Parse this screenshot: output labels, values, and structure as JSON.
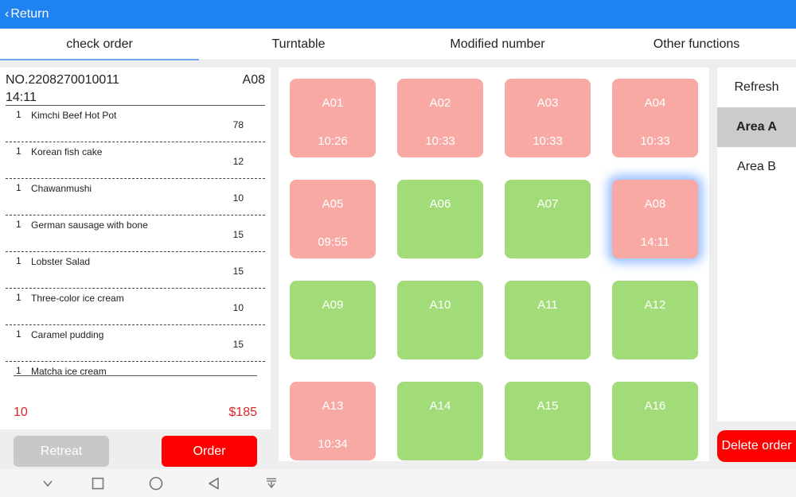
{
  "topbar": {
    "back_label": "Return"
  },
  "tabs": [
    {
      "label": "check order"
    },
    {
      "label": "Turntable"
    },
    {
      "label": "Modified number"
    },
    {
      "label": "Other functions"
    }
  ],
  "order": {
    "number": "NO.2208270010011",
    "table": "A08",
    "time": "14:11",
    "items": [
      {
        "qty": "1",
        "name": "Kimchi Beef Hot Pot",
        "price": "78"
      },
      {
        "qty": "1",
        "name": "Korean fish cake",
        "price": "12"
      },
      {
        "qty": "1",
        "name": "Chawanmushi",
        "price": "10"
      },
      {
        "qty": "1",
        "name": "German sausage with bone",
        "price": "15"
      },
      {
        "qty": "1",
        "name": "Lobster Salad",
        "price": "15"
      },
      {
        "qty": "1",
        "name": "Three-color ice cream",
        "price": "10"
      },
      {
        "qty": "1",
        "name": "Caramel pudding",
        "price": "15"
      },
      {
        "qty": "1",
        "name": "Matcha ice cream",
        "price": ""
      }
    ],
    "total_count": "10",
    "total_amount": "$185"
  },
  "buttons": {
    "retreat": "Retreat",
    "order": "Order",
    "delete_order": "Delete order"
  },
  "tables": [
    {
      "name": "A01",
      "time": "10:26",
      "status": "occupied"
    },
    {
      "name": "A02",
      "time": "10:33",
      "status": "occupied"
    },
    {
      "name": "A03",
      "time": "10:33",
      "status": "occupied"
    },
    {
      "name": "A04",
      "time": "10:33",
      "status": "occupied"
    },
    {
      "name": "A05",
      "time": "09:55",
      "status": "occupied"
    },
    {
      "name": "A06",
      "time": "",
      "status": "free"
    },
    {
      "name": "A07",
      "time": "",
      "status": "free"
    },
    {
      "name": "A08",
      "time": "14:11",
      "status": "occupied",
      "selected": true
    },
    {
      "name": "A09",
      "time": "",
      "status": "free"
    },
    {
      "name": "A10",
      "time": "",
      "status": "free"
    },
    {
      "name": "A11",
      "time": "",
      "status": "free"
    },
    {
      "name": "A12",
      "time": "",
      "status": "free"
    },
    {
      "name": "A13",
      "time": "10:34",
      "status": "occupied"
    },
    {
      "name": "A14",
      "time": "",
      "status": "free"
    },
    {
      "name": "A15",
      "time": "",
      "status": "free"
    },
    {
      "name": "A16",
      "time": "",
      "status": "free"
    }
  ],
  "areas": {
    "refresh": "Refresh",
    "items": [
      {
        "label": "Area A",
        "active": true
      },
      {
        "label": "Area B",
        "active": false
      }
    ]
  },
  "colors": {
    "header": "#1e82f0",
    "occupied": "#f8a9a4",
    "free": "#a2dc78",
    "accent_red": "#ff0000"
  },
  "navbar": {
    "icons": [
      "chevron-down-icon",
      "recent-apps-icon",
      "home-icon",
      "back-icon",
      "notification-drawer-icon"
    ]
  }
}
